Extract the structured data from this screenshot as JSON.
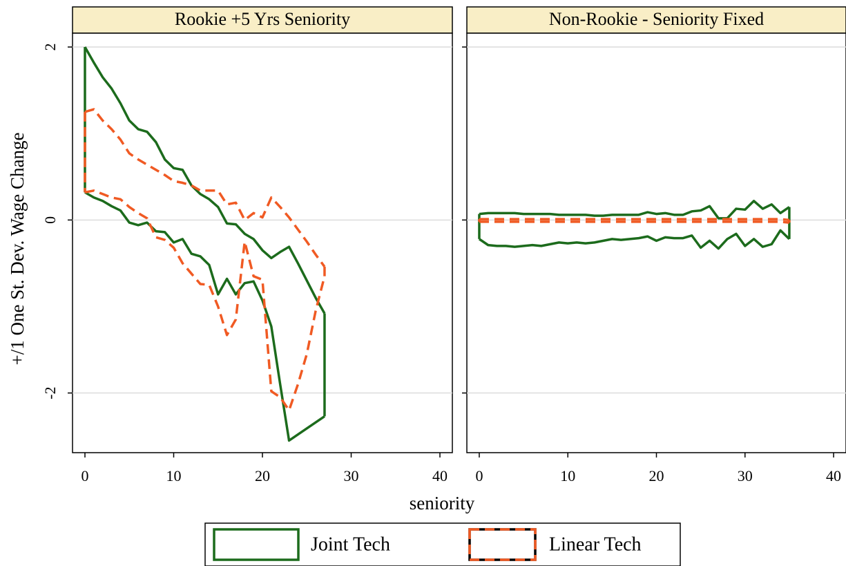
{
  "chart_data": {
    "type": "range-area",
    "ylabel": "+/1 One St. Dev. Wage Change",
    "xlabel": "seniority",
    "grid": true,
    "xlim": [
      -1.4,
      41.4
    ],
    "ylim": [
      -2.69,
      2.16
    ],
    "xticks": [
      0,
      10,
      20,
      30,
      40
    ],
    "yticks": [
      -2,
      0,
      2
    ],
    "series": [
      {
        "name": "Joint Tech",
        "color": "#1c6b1c",
        "line_style": "solid"
      },
      {
        "name": "Linear Tech",
        "color": "#f05a23",
        "line_style": "dashed"
      }
    ],
    "panels": [
      {
        "title": "Rookie +5 Yrs Seniority",
        "x": [
          0,
          1,
          2,
          3,
          4,
          5,
          6,
          7,
          8,
          9,
          10,
          11,
          12,
          13,
          14,
          15,
          16,
          17,
          18,
          19,
          20,
          21,
          22,
          23,
          24,
          25,
          26,
          27
        ],
        "series": [
          {
            "upper": [
              2.0,
              1.82,
              1.65,
              1.52,
              1.35,
              1.15,
              1.05,
              1.02,
              0.9,
              0.7,
              0.6,
              0.58,
              0.4,
              0.3,
              0.24,
              0.15,
              -0.04,
              -0.05,
              -0.16,
              -0.22,
              -0.35,
              -0.44,
              -0.37,
              -0.31,
              -0.5,
              -0.7,
              -0.9,
              -1.08
            ],
            "lower": [
              0.32,
              0.26,
              0.22,
              0.16,
              0.11,
              -0.03,
              -0.06,
              -0.03,
              -0.13,
              -0.14,
              -0.26,
              -0.22,
              -0.39,
              -0.42,
              -0.52,
              -0.86,
              -0.68,
              -0.86,
              -0.73,
              -0.71,
              -0.93,
              -1.23,
              -1.9,
              -2.55,
              -2.48,
              -2.41,
              -2.34,
              -2.27
            ]
          },
          {
            "upper": [
              1.25,
              1.28,
              1.15,
              1.05,
              0.93,
              0.77,
              0.7,
              0.64,
              0.58,
              0.52,
              0.45,
              0.43,
              0.4,
              0.34,
              0.34,
              0.34,
              0.18,
              0.2,
              0.0,
              0.08,
              0.03,
              0.26,
              0.15,
              0.03,
              -0.11,
              -0.25,
              -0.4,
              -0.54
            ],
            "lower": [
              0.32,
              0.34,
              0.3,
              0.26,
              0.24,
              0.15,
              0.08,
              0.02,
              -0.2,
              -0.23,
              -0.32,
              -0.5,
              -0.62,
              -0.74,
              -0.75,
              -1.0,
              -1.33,
              -1.15,
              -0.25,
              -0.65,
              -0.69,
              -1.98,
              -2.05,
              -2.2,
              -1.9,
              -1.55,
              -1.05,
              -0.65
            ]
          }
        ]
      },
      {
        "title": "Non-Rookie - Seniority Fixed",
        "x": [
          0,
          1,
          2,
          3,
          4,
          5,
          6,
          7,
          8,
          9,
          10,
          11,
          12,
          13,
          14,
          15,
          16,
          17,
          18,
          19,
          20,
          21,
          22,
          23,
          24,
          25,
          26,
          27,
          28,
          29,
          30,
          31,
          32,
          33,
          34,
          35
        ],
        "series": [
          {
            "upper": [
              0.07,
              0.08,
              0.08,
              0.08,
              0.08,
              0.07,
              0.07,
              0.07,
              0.07,
              0.06,
              0.06,
              0.06,
              0.06,
              0.05,
              0.05,
              0.06,
              0.06,
              0.06,
              0.06,
              0.09,
              0.07,
              0.08,
              0.06,
              0.06,
              0.1,
              0.11,
              0.16,
              0.02,
              0.02,
              0.13,
              0.12,
              0.22,
              0.13,
              0.18,
              0.08,
              0.15
            ],
            "lower": [
              -0.22,
              -0.29,
              -0.3,
              -0.3,
              -0.31,
              -0.3,
              -0.29,
              -0.3,
              -0.28,
              -0.26,
              -0.27,
              -0.26,
              -0.27,
              -0.26,
              -0.24,
              -0.22,
              -0.23,
              -0.22,
              -0.21,
              -0.19,
              -0.24,
              -0.2,
              -0.21,
              -0.21,
              -0.18,
              -0.32,
              -0.24,
              -0.33,
              -0.22,
              -0.16,
              -0.3,
              -0.22,
              -0.31,
              -0.28,
              -0.12,
              -0.22
            ]
          },
          {
            "upper": [
              0.01,
              0.01,
              0.01,
              0.01,
              0.01,
              0.01,
              0.01,
              0.01,
              0.01,
              0.01,
              0.01,
              0.01,
              0.01,
              0.01,
              0.01,
              0.01,
              0.01,
              0.01,
              0.01,
              0.01,
              0.01,
              0.01,
              0.01,
              0.01,
              0.01,
              0.01,
              0.01,
              0.01,
              0.01,
              0.01,
              0.01,
              0.01,
              0.01,
              0.01,
              0.01,
              0.0
            ],
            "lower": [
              -0.02,
              -0.02,
              -0.02,
              -0.02,
              -0.02,
              -0.02,
              -0.02,
              -0.02,
              -0.02,
              -0.02,
              -0.02,
              -0.02,
              -0.02,
              -0.02,
              -0.02,
              -0.02,
              -0.02,
              -0.02,
              -0.02,
              -0.02,
              -0.02,
              -0.02,
              -0.02,
              -0.02,
              -0.02,
              -0.02,
              -0.02,
              -0.02,
              -0.02,
              -0.02,
              -0.02,
              -0.02,
              -0.02,
              -0.02,
              -0.02,
              -0.03
            ]
          }
        ]
      }
    ]
  }
}
